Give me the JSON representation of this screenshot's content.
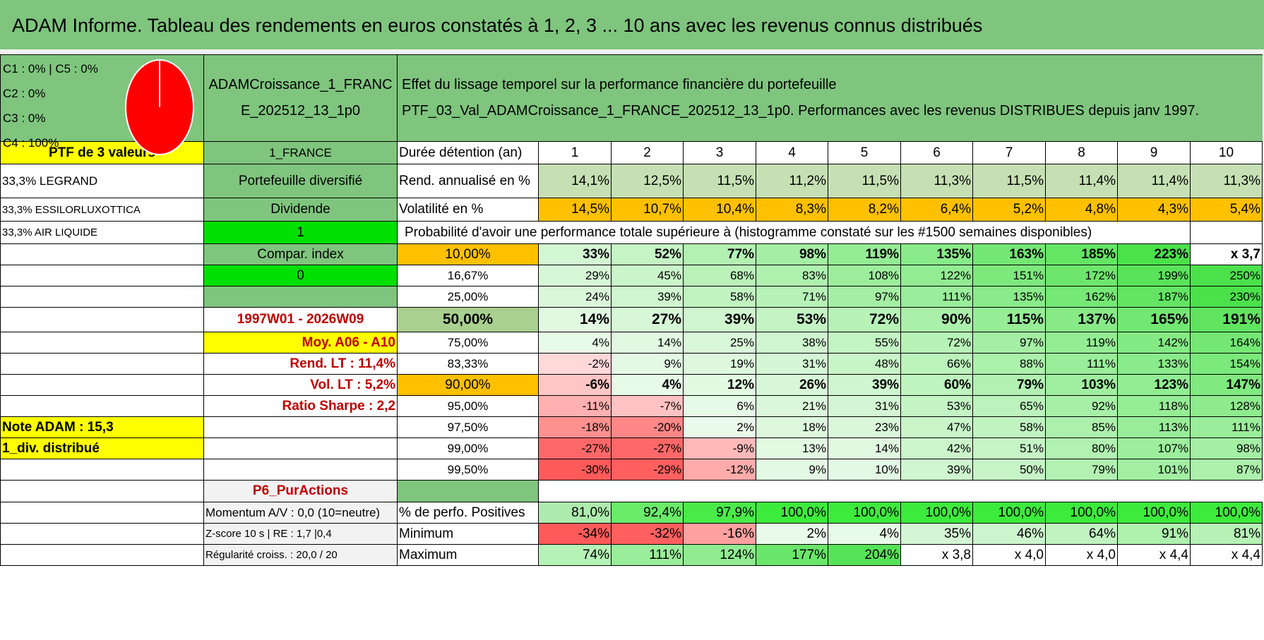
{
  "title": "ADAM Informe. Tableau des rendements en euros constatés à 1, 2, 3 ... 10 ans avec les revenus connus distribués",
  "legend": {
    "line1": "C1 : 0% | C5 : 0%",
    "line2": "C2 : 0%",
    "line3": "C3 : 0%",
    "line4": "C4 : 100%"
  },
  "colors": {
    "header_green": "#7fc57e",
    "pie_red": "#ff0000",
    "yellow": "#ffff00",
    "orange": "#ffc000",
    "bright_green": "#00e000"
  },
  "portfolio_name": "ADAMCroissance_1_FRANCE_202512_13_1p0",
  "portfolio_name_line1": "ADAMCroissance_1_FRANC",
  "portfolio_name_line2": "E_202512_13_1p0",
  "header_line1": "Effet du lissage temporel sur la performance financière du portefeuille",
  "header_line2": "PTF_03_Val_ADAMCroissance_1_FRANCE_202512_13_1p0. Performances avec les revenus DISTRIBUES depuis janv 1997.",
  "ptf_label": "PTF de 3 valeurs",
  "country": "1_FRANCE",
  "holding_label": "Durée détention (an)",
  "years": [
    "1",
    "2",
    "3",
    "4",
    "5",
    "6",
    "7",
    "8",
    "9",
    "10"
  ],
  "holdings": [
    "33,3% LEGRAND",
    "33,3% ESSILORLUXOTTICA",
    "33,3% AIR LIQUIDE"
  ],
  "side": {
    "diversifie": "Portefeuille diversifié",
    "dividende": "Dividende",
    "one": "1",
    "compar": "Compar. index",
    "zero": "0",
    "period": "1997W01 - 2026W09",
    "moy": "Moy. A06 - A10",
    "rend_lt": "Rend. LT : 11,4%",
    "vol_lt": "Vol. LT : 5,2%",
    "sharpe": "Ratio Sharpe : 2,2",
    "note": "Note ADAM : 15,3",
    "div": "1_div. distribué",
    "p6": "P6_PurActions",
    "momentum": "Momentum A/V : 0,0 (10=neutre)",
    "zscore": "Z-score 10 s | RE : 1,7 |0,4",
    "regularite": "Régularité croiss. : 20,0 / 20"
  },
  "rend": {
    "label": "Rend. annualisé en %",
    "values": [
      "14,1%",
      "12,5%",
      "11,5%",
      "11,2%",
      "11,5%",
      "11,3%",
      "11,5%",
      "11,4%",
      "11,4%",
      "11,3%"
    ]
  },
  "vol": {
    "label": "Volatilité en %",
    "values": [
      "14,5%",
      "10,7%",
      "10,4%",
      "8,3%",
      "8,2%",
      "6,4%",
      "5,2%",
      "4,8%",
      "4,3%",
      "5,4%"
    ]
  },
  "proba_title": "Probabilité d'avoir une performance totale supérieure à (histogramme constaté sur les #1500 semaines disponibles)",
  "proba": [
    {
      "pct": "10,00%",
      "values": [
        "33%",
        "52%",
        "77%",
        "98%",
        "119%",
        "135%",
        "163%",
        "185%",
        "223%",
        "x 3,7"
      ]
    },
    {
      "pct": "16,67%",
      "values": [
        "29%",
        "45%",
        "68%",
        "83%",
        "108%",
        "122%",
        "151%",
        "172%",
        "199%",
        "250%"
      ]
    },
    {
      "pct": "25,00%",
      "values": [
        "24%",
        "39%",
        "58%",
        "71%",
        "97%",
        "111%",
        "135%",
        "162%",
        "187%",
        "230%"
      ]
    },
    {
      "pct": "50,00%",
      "values": [
        "14%",
        "27%",
        "39%",
        "53%",
        "72%",
        "90%",
        "115%",
        "137%",
        "165%",
        "191%"
      ]
    },
    {
      "pct": "75,00%",
      "values": [
        "4%",
        "14%",
        "25%",
        "38%",
        "55%",
        "72%",
        "97%",
        "119%",
        "142%",
        "164%"
      ]
    },
    {
      "pct": "83,33%",
      "values": [
        "-2%",
        "9%",
        "19%",
        "31%",
        "48%",
        "66%",
        "88%",
        "111%",
        "133%",
        "154%"
      ]
    },
    {
      "pct": "90,00%",
      "values": [
        "-6%",
        "4%",
        "12%",
        "26%",
        "39%",
        "60%",
        "79%",
        "103%",
        "123%",
        "147%"
      ]
    },
    {
      "pct": "95,00%",
      "values": [
        "-11%",
        "-7%",
        "6%",
        "21%",
        "31%",
        "53%",
        "65%",
        "92%",
        "118%",
        "128%"
      ]
    },
    {
      "pct": "97,50%",
      "values": [
        "-18%",
        "-20%",
        "2%",
        "18%",
        "23%",
        "47%",
        "58%",
        "85%",
        "113%",
        "111%"
      ]
    },
    {
      "pct": "99,00%",
      "values": [
        "-27%",
        "-27%",
        "-9%",
        "13%",
        "14%",
        "42%",
        "51%",
        "80%",
        "107%",
        "98%"
      ]
    },
    {
      "pct": "99,50%",
      "values": [
        "-30%",
        "-29%",
        "-12%",
        "9%",
        "10%",
        "39%",
        "50%",
        "79%",
        "101%",
        "87%"
      ]
    }
  ],
  "positives": {
    "label": "% de perfo. Positives",
    "values": [
      "81,0%",
      "92,4%",
      "97,9%",
      "100,0%",
      "100,0%",
      "100,0%",
      "100,0%",
      "100,0%",
      "100,0%",
      "100,0%"
    ]
  },
  "minimum": {
    "label": "Minimum",
    "values": [
      "-34%",
      "-32%",
      "-16%",
      "2%",
      "4%",
      "35%",
      "46%",
      "64%",
      "91%",
      "81%"
    ]
  },
  "maximum": {
    "label": "Maximum",
    "values": [
      "74%",
      "111%",
      "124%",
      "177%",
      "204%",
      "x 3,8",
      "x 4,0",
      "x 4,0",
      "x 4,4",
      "x 4,4"
    ]
  }
}
